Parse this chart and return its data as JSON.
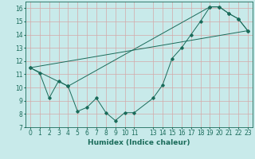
{
  "xlabel": "Humidex (Indice chaleur)",
  "bg_color": "#c8eaea",
  "grid_color": "#d4a8a8",
  "line_color": "#1a6b5a",
  "xlim": [
    -0.5,
    23.5
  ],
  "ylim": [
    7.0,
    16.5
  ],
  "xticks": [
    0,
    1,
    2,
    3,
    4,
    5,
    6,
    7,
    8,
    9,
    10,
    11,
    13,
    14,
    15,
    16,
    17,
    18,
    19,
    20,
    21,
    22,
    23
  ],
  "yticks": [
    7,
    8,
    9,
    10,
    11,
    12,
    13,
    14,
    15,
    16
  ],
  "line1_x": [
    0,
    1,
    2,
    3,
    4,
    5,
    6,
    7,
    8,
    9,
    10,
    11,
    13,
    14,
    15,
    16,
    17,
    18,
    19,
    20,
    21,
    22,
    23
  ],
  "line1_y": [
    11.5,
    11.1,
    9.2,
    10.5,
    10.1,
    8.2,
    8.5,
    9.2,
    8.1,
    7.5,
    8.1,
    8.1,
    9.2,
    10.2,
    12.2,
    13.0,
    14.0,
    15.0,
    16.1,
    16.1,
    15.6,
    15.2,
    14.3
  ],
  "line2_x": [
    0,
    4,
    19,
    20,
    21,
    22,
    23
  ],
  "line2_y": [
    11.5,
    10.1,
    16.1,
    16.1,
    15.6,
    15.2,
    14.3
  ],
  "line3_x": [
    0,
    23
  ],
  "line3_y": [
    11.5,
    14.3
  ],
  "tick_fontsize": 5.5,
  "axis_fontsize": 6.5
}
